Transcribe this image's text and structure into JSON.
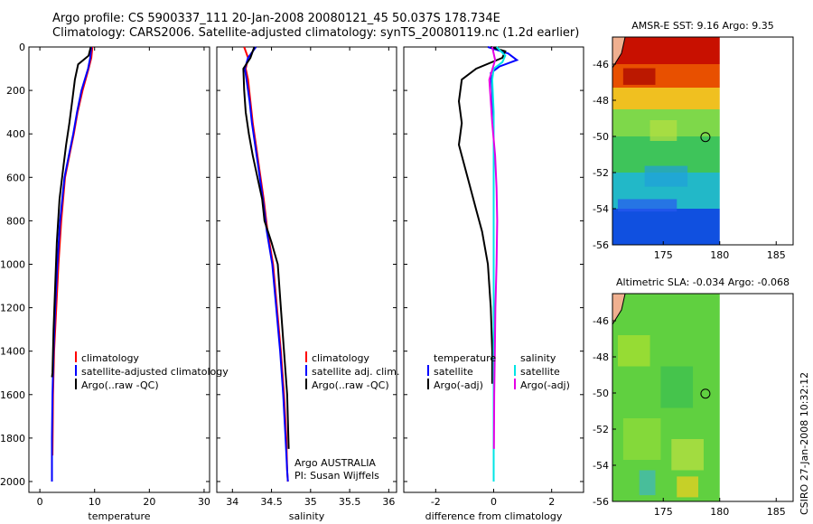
{
  "titles": {
    "line1": "Argo profile: CS 5900337_111 20-Jan-2008 20080121_45 50.037S 178.734E",
    "line2": "Climatology: CARS2006. Satellite-adjusted climatology: synTS_20080119.nc (1.2d earlier)"
  },
  "vertical_label": "CSIRO 27-Jan-2008 10:32:12",
  "colors": {
    "climatology": "#ff0000",
    "satellite": "#0000ff",
    "argo": "#000000",
    "satellite_salinity": "#00e5e5",
    "argo_salinity": "#e500e5"
  },
  "chart_data": [
    {
      "type": "line",
      "id": "temperature",
      "xlabel": "temperature",
      "xlim": [
        -2,
        31
      ],
      "ylim": [
        2050,
        0
      ],
      "xticks": [
        "0",
        "10",
        "20",
        "30"
      ],
      "xtick_values": [
        0,
        10,
        20,
        30
      ],
      "yticks": [
        "0",
        "200",
        "400",
        "600",
        "800",
        "1000",
        "1200",
        "1400",
        "1600",
        "1800",
        "2000"
      ],
      "ytick_values": [
        0,
        200,
        400,
        600,
        800,
        1000,
        1200,
        1400,
        1600,
        1800,
        2000
      ],
      "legend": [
        "climatology",
        "satellite-adjusted climatology",
        "Argo(..raw -QC)"
      ],
      "series": [
        {
          "name": "climatology",
          "color": "#ff0000",
          "x": [
            9.6,
            9.4,
            8.9,
            7.8,
            6.9,
            6.2,
            5.4,
            4.6,
            3.9,
            3.4,
            3.0,
            2.6,
            2.4,
            2.3
          ],
          "y": [
            0,
            50,
            100,
            200,
            300,
            400,
            500,
            600,
            800,
            1000,
            1200,
            1400,
            1600,
            1880
          ]
        },
        {
          "name": "satellite-adjusted climatology",
          "color": "#0000ff",
          "x": [
            9.4,
            9.2,
            8.8,
            7.6,
            6.8,
            6.1,
            5.3,
            4.5,
            3.7,
            3.2,
            2.8,
            2.5,
            2.3,
            2.2,
            2.2
          ],
          "y": [
            0,
            50,
            100,
            200,
            300,
            400,
            500,
            600,
            800,
            1000,
            1200,
            1400,
            1600,
            1800,
            2000
          ]
        },
        {
          "name": "Argo(..raw -QC)",
          "color": "#000000",
          "x": [
            9.3,
            8.9,
            7.0,
            6.4,
            5.9,
            5.4,
            4.8,
            4.3,
            3.6,
            3.1,
            2.8,
            2.5,
            2.3,
            2.2
          ],
          "y": [
            0,
            40,
            80,
            150,
            250,
            350,
            450,
            550,
            700,
            900,
            1100,
            1300,
            1500,
            1520
          ]
        }
      ]
    },
    {
      "type": "line",
      "id": "salinity",
      "xlabel": "salinity",
      "xlim": [
        33.8,
        36.1
      ],
      "ylim": [
        2050,
        0
      ],
      "xticks": [
        "34",
        "34.5",
        "35",
        "35.5",
        "36"
      ],
      "xtick_values": [
        34,
        34.5,
        35,
        35.5,
        36
      ],
      "legend": [
        "climatology",
        "satellite adj. clim.",
        "Argo(..raw -QC)"
      ],
      "annotations": [
        "Argo AUSTRALIA",
        "PI: Susan Wijffels"
      ],
      "series": [
        {
          "name": "climatology",
          "color": "#ff0000",
          "x": [
            34.15,
            34.2,
            34.17,
            34.2,
            34.23,
            34.26,
            34.3,
            34.34,
            34.4,
            34.45,
            34.52,
            34.57,
            34.62,
            34.66,
            34.69,
            34.7,
            34.71
          ],
          "y": [
            0,
            50,
            100,
            150,
            250,
            350,
            450,
            550,
            700,
            850,
            1000,
            1200,
            1400,
            1600,
            1800,
            1950,
            2000
          ]
        },
        {
          "name": "satellite adj. clim.",
          "color": "#0000ff",
          "x": [
            34.3,
            34.2,
            34.16,
            34.18,
            34.22,
            34.25,
            34.29,
            34.33,
            34.39,
            34.44,
            34.51,
            34.56,
            34.61,
            34.65,
            34.68,
            34.7,
            34.71
          ],
          "y": [
            0,
            50,
            100,
            150,
            250,
            350,
            450,
            550,
            700,
            850,
            1000,
            1200,
            1400,
            1600,
            1800,
            1950,
            2000
          ]
        },
        {
          "name": "Argo(..raw -QC)",
          "color": "#000000",
          "x": [
            34.28,
            34.23,
            34.14,
            34.15,
            34.17,
            34.21,
            34.26,
            34.32,
            34.38,
            34.41,
            34.5,
            34.58,
            34.62,
            34.66,
            34.7,
            34.72
          ],
          "y": [
            0,
            50,
            100,
            200,
            300,
            400,
            500,
            600,
            700,
            800,
            900,
            1000,
            1200,
            1400,
            1600,
            1850
          ]
        }
      ]
    },
    {
      "type": "line",
      "id": "difference",
      "xlabel": "difference from climatology",
      "xlim": [
        -3.1,
        3.1
      ],
      "ylim": [
        2050,
        0
      ],
      "xticks": [
        "-2",
        "0",
        "2"
      ],
      "xtick_values": [
        -2,
        0,
        2
      ],
      "legend": [
        "temperature",
        "satellite",
        "Argo(-adj)",
        "salinity",
        "satellite",
        "Argo(-adj)"
      ],
      "series": [
        {
          "name": "temperature satellite",
          "color": "#0000ff",
          "x": [
            -0.2,
            0.5,
            0.8,
            0.2,
            -0.1,
            -0.05,
            0,
            0,
            0,
            0,
            0
          ],
          "y": [
            0,
            30,
            60,
            90,
            120,
            200,
            400,
            800,
            1200,
            1600,
            2000
          ]
        },
        {
          "name": "temperature Argo(-adj)",
          "color": "#000000",
          "x": [
            -0.1,
            0.4,
            0.3,
            -0.6,
            -1.1,
            -1.2,
            -1.1,
            -1.2,
            -1.0,
            -0.8,
            -0.6,
            -0.4,
            -0.2,
            -0.1,
            -0.05,
            -0.05
          ],
          "y": [
            0,
            20,
            50,
            100,
            150,
            250,
            350,
            450,
            550,
            650,
            750,
            850,
            1000,
            1200,
            1400,
            1550
          ]
        },
        {
          "name": "salinity satellite",
          "color": "#00e5e5",
          "x": [
            0.1,
            0.4,
            0.3,
            0,
            -0.05,
            0,
            0,
            0,
            0,
            0,
            0
          ],
          "y": [
            0,
            40,
            70,
            100,
            150,
            300,
            600,
            900,
            1300,
            1700,
            2000
          ]
        },
        {
          "name": "salinity Argo(-adj)",
          "color": "#e500e5",
          "x": [
            -0.05,
            0.05,
            -0.15,
            -0.1,
            -0.05,
            0.05,
            0.1,
            0.12,
            0.1,
            0.06,
            0.04,
            0.02,
            0.01
          ],
          "y": [
            0,
            60,
            150,
            250,
            350,
            500,
            650,
            800,
            1000,
            1200,
            1400,
            1600,
            1850
          ]
        }
      ]
    },
    {
      "type": "heatmap",
      "id": "sst",
      "title": "AMSR-E SST: 9.16 Argo: 9.35",
      "xlim": [
        170.5,
        186.5
      ],
      "ylim": [
        -56,
        -44.5
      ],
      "xticks": [
        "175",
        "180",
        "185"
      ],
      "xtick_values": [
        175,
        180,
        185
      ],
      "yticks": [
        "-46",
        "-48",
        "-50",
        "-52",
        "-54",
        "-56"
      ],
      "ytick_values": [
        -46,
        -48,
        -50,
        -52,
        -54,
        -56
      ],
      "data_extent_lon": [
        170.5,
        180
      ],
      "marker": {
        "lon": 178.734,
        "lat": -50.037
      },
      "color_bands": [
        {
          "lat": [
            -44.5,
            -46
          ],
          "color": "#c81000"
        },
        {
          "lat": [
            -46,
            -47.3
          ],
          "color": "#e85000"
        },
        {
          "lat": [
            -47.3,
            -48.5
          ],
          "color": "#f0c020"
        },
        {
          "lat": [
            -48.5,
            -50
          ],
          "color": "#7ed84a"
        },
        {
          "lat": [
            -50,
            -52
          ],
          "color": "#3ec45a"
        },
        {
          "lat": [
            -52,
            -54
          ],
          "color": "#22b8c8"
        },
        {
          "lat": [
            -54,
            -56
          ],
          "color": "#1050e0"
        }
      ]
    },
    {
      "type": "heatmap",
      "id": "sla",
      "title": "Altimetric SLA: -0.034 Argo: -0.068",
      "xlim": [
        170.5,
        186.5
      ],
      "ylim": [
        -56,
        -44.5
      ],
      "xticks": [
        "175",
        "180",
        "185"
      ],
      "xtick_values": [
        175,
        180,
        185
      ],
      "yticks": [
        "-46",
        "-48",
        "-50",
        "-52",
        "-54",
        "-56"
      ],
      "ytick_values": [
        -46,
        -48,
        -50,
        -52,
        -54,
        -56
      ],
      "data_extent_lon": [
        170.5,
        180
      ],
      "marker": {
        "lon": 178.734,
        "lat": -50.037
      },
      "base_color": "#60d040"
    }
  ]
}
